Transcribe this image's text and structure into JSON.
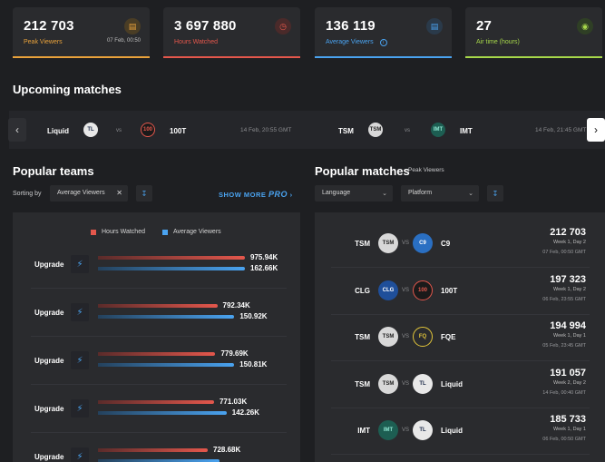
{
  "stats": [
    {
      "value": "212 703",
      "label": "Peak Viewers",
      "date": "07 Feb, 00:50",
      "icon": "chart-icon",
      "color": "#e9a23b"
    },
    {
      "value": "3 697 880",
      "label": "Hours Watched",
      "date": "",
      "icon": "clock-icon",
      "color": "#e4574c"
    },
    {
      "value": "136 119",
      "label": "Average Viewers",
      "date": "",
      "icon": "chart-icon",
      "color": "#4aa3f0"
    },
    {
      "value": "27",
      "label": "Air time (hours)",
      "date": "",
      "icon": "broadcast-icon",
      "color": "#a7d84a"
    }
  ],
  "upcoming": {
    "title": "Upcoming matches",
    "matches": [
      {
        "team1": "Liquid",
        "team2": "100T",
        "vs": "vs",
        "time": "14 Feb, 20:55 GMT"
      },
      {
        "team1": "TSM",
        "team2": "IMT",
        "vs": "vs",
        "time": "14 Feb, 21:45 GMT"
      }
    ]
  },
  "popular_teams": {
    "title": "Popular teams",
    "sort_label": "Sorting by",
    "sort_value": "Average Viewers",
    "show_more": "SHOW MORE",
    "pro_label": "PRO",
    "legend": {
      "hours": "Hours Watched",
      "avg": "Average Viewers"
    },
    "colors": {
      "hours": "#e4574c",
      "avg": "#4aa3f0"
    },
    "rows": [
      {
        "label": "Upgrade",
        "hours": "975.94K",
        "avg": "162.66K",
        "hours_frac": 1.0,
        "avg_frac": 1.0
      },
      {
        "label": "Upgrade",
        "hours": "792.34K",
        "avg": "150.92K",
        "hours_frac": 0.812,
        "avg_frac": 0.928
      },
      {
        "label": "Upgrade",
        "hours": "779.69K",
        "avg": "150.81K",
        "hours_frac": 0.799,
        "avg_frac": 0.927
      },
      {
        "label": "Upgrade",
        "hours": "771.03K",
        "avg": "142.26K",
        "hours_frac": 0.79,
        "avg_frac": 0.875
      },
      {
        "label": "Upgrade",
        "hours": "728.68K",
        "avg": "",
        "hours_frac": 0.747,
        "avg_frac": 0.83
      }
    ]
  },
  "popular_matches": {
    "title": "Popular matches",
    "subtitle": "Peak Viewers",
    "filters": [
      "Language",
      "Platform"
    ],
    "rows": [
      {
        "team1": "TSM",
        "team2": "C9",
        "value": "212 703",
        "week": "Week 1, Day 2",
        "date": "07 Feb, 00:50 GMT"
      },
      {
        "team1": "CLG",
        "team2": "100T",
        "value": "197 323",
        "week": "Week 1, Day 2",
        "date": "06 Feb, 23:55 GMT"
      },
      {
        "team1": "TSM",
        "team2": "FQE",
        "value": "194 994",
        "week": "Week 1, Day 1",
        "date": "05 Feb, 23:45 GMT"
      },
      {
        "team1": "TSM",
        "team2": "Liquid",
        "value": "191 057",
        "week": "Week 2, Day 2",
        "date": "14 Feb, 00:40 GMT"
      },
      {
        "team1": "IMT",
        "team2": "Liquid",
        "value": "185 733",
        "week": "Week 1, Day 1",
        "date": "06 Feb, 00:50 GMT"
      }
    ]
  }
}
